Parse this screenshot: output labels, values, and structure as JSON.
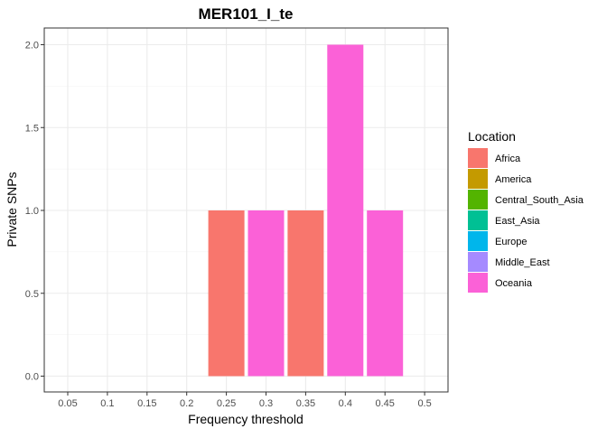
{
  "chart_data": {
    "type": "bar",
    "title": "MER101_I_te",
    "xlabel": "Frequency threshold",
    "ylabel": "Private SNPs",
    "x_ticks": [
      "0.05",
      "0.1",
      "0.15",
      "0.2",
      "0.25",
      "0.3",
      "0.35",
      "0.4",
      "0.45",
      "0.5"
    ],
    "y_ticks": [
      "0.0",
      "0.5",
      "1.0",
      "1.5",
      "2.0"
    ],
    "ylim": [
      0,
      2
    ],
    "grid": true,
    "legend_position": "right",
    "legend": {
      "title": "Location",
      "entries": [
        {
          "name": "Africa",
          "color": "#F8766D"
        },
        {
          "name": "America",
          "color": "#C49A00"
        },
        {
          "name": "Central_South_Asia",
          "color": "#53B400"
        },
        {
          "name": "East_Asia",
          "color": "#00C094"
        },
        {
          "name": "Europe",
          "color": "#00B6EB"
        },
        {
          "name": "Middle_East",
          "color": "#A58AFF"
        },
        {
          "name": "Oceania",
          "color": "#FB61D7"
        }
      ]
    },
    "bars": [
      {
        "x": "0.25",
        "location": "Africa",
        "value": 1
      },
      {
        "x": "0.3",
        "location": "Oceania",
        "value": 1
      },
      {
        "x": "0.35",
        "location": "Africa",
        "value": 1
      },
      {
        "x": "0.4",
        "location": "Oceania",
        "value": 2
      },
      {
        "x": "0.45",
        "location": "Oceania",
        "value": 1
      }
    ]
  }
}
